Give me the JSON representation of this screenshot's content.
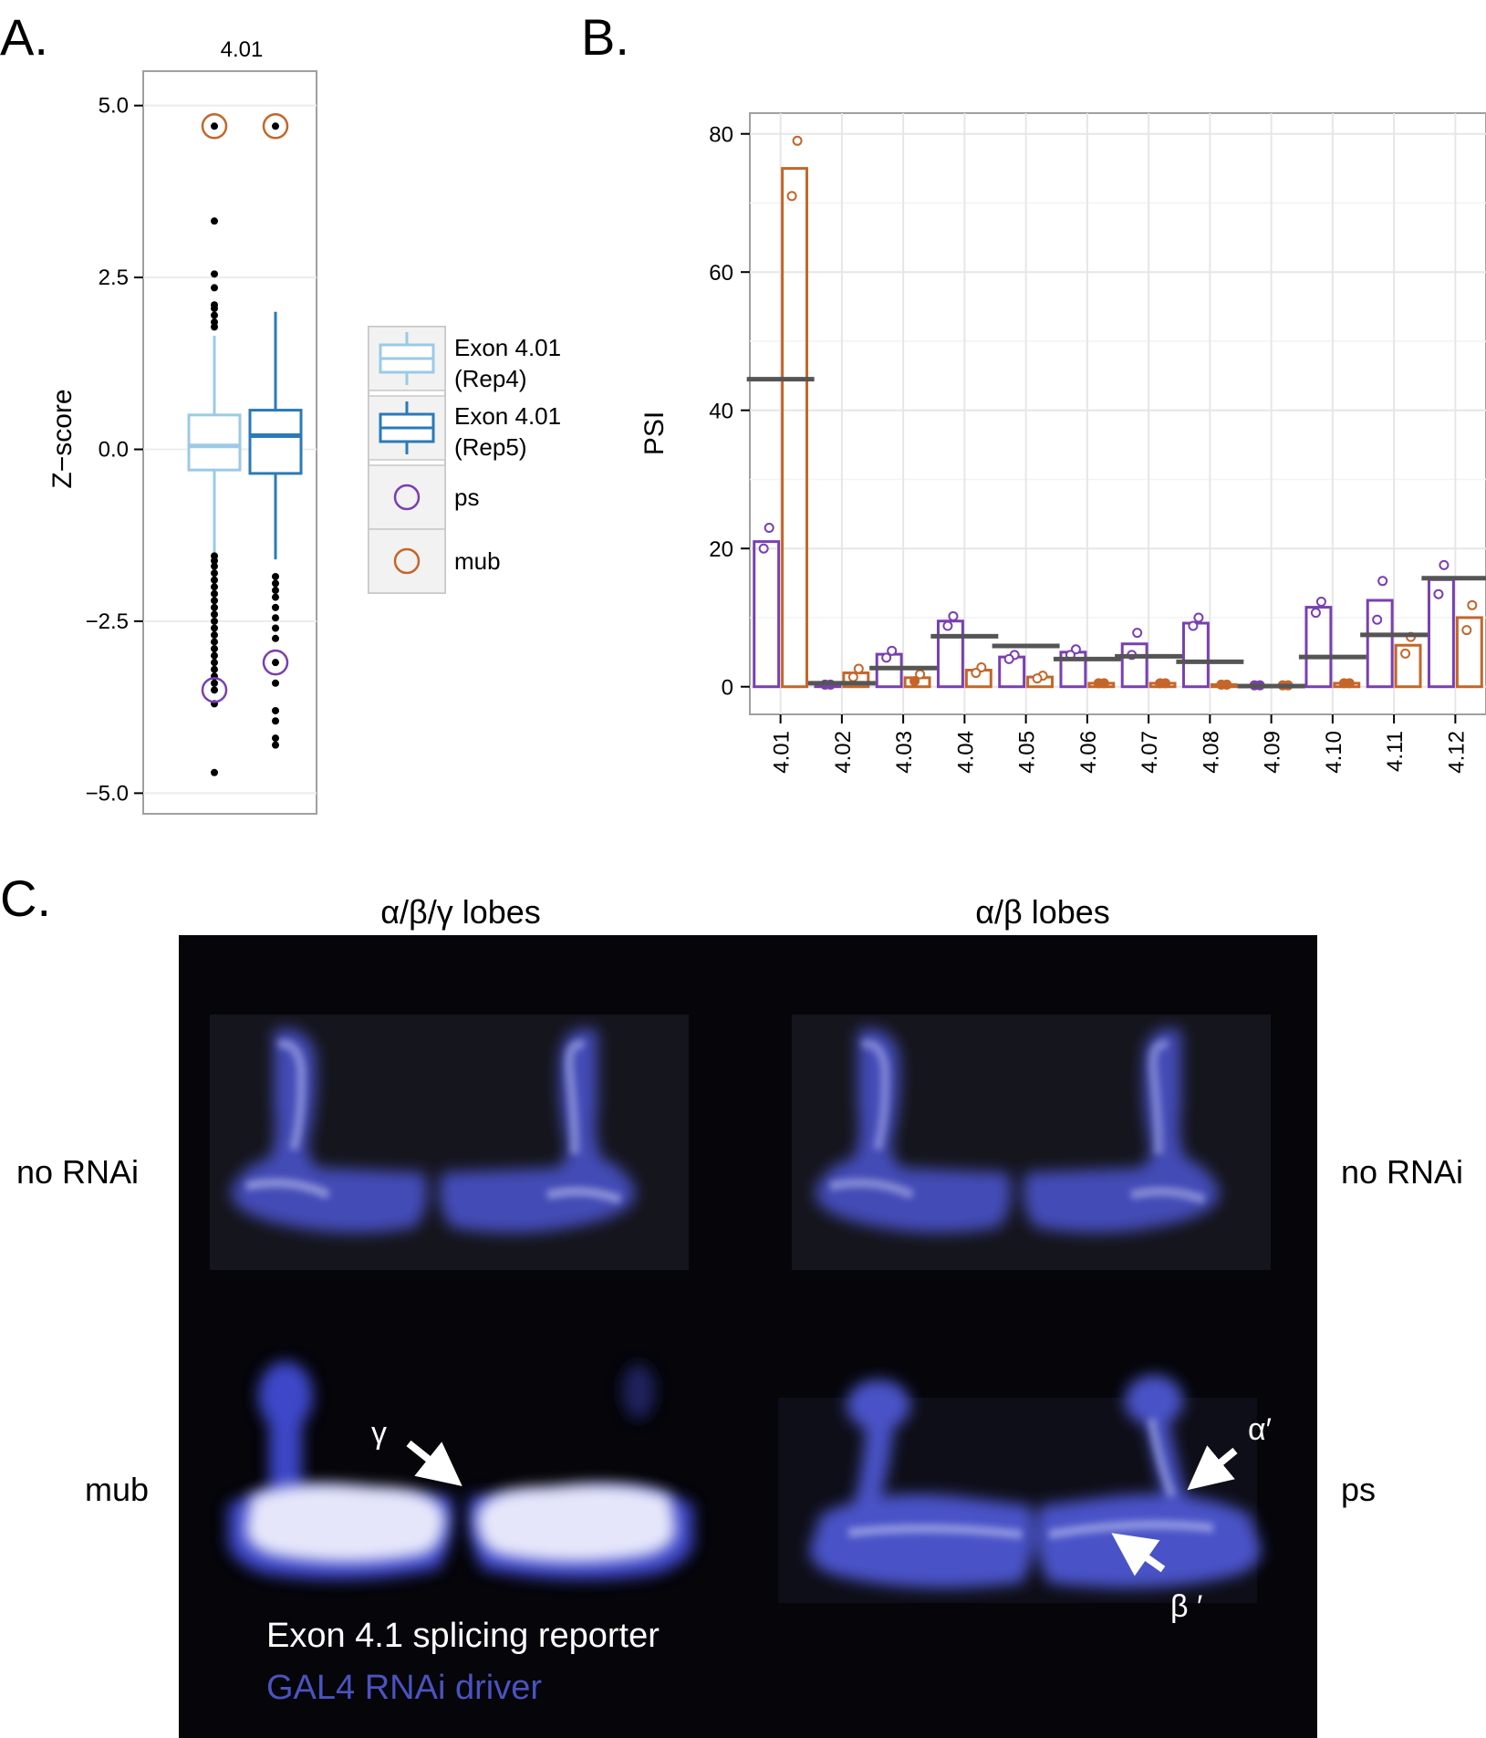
{
  "panels": {
    "a": {
      "letter": "A.",
      "strip_label": "4.01",
      "ylabel": "Z−score",
      "legend": [
        {
          "label_line1": "Exon 4.01",
          "label_line2": "(Rep4)",
          "color": "#9ccae6",
          "kind": "box"
        },
        {
          "label_line1": "Exon 4.01",
          "label_line2": "(Rep5)",
          "color": "#2a7ab8",
          "kind": "box"
        },
        {
          "label_line1": "ps",
          "label_line2": "",
          "color": "#7a3fb0",
          "kind": "circle"
        },
        {
          "label_line1": "mub",
          "label_line2": "",
          "color": "#c4662a",
          "kind": "circle"
        }
      ]
    },
    "b": {
      "letter": "B.",
      "ylabel": "PSI"
    },
    "c": {
      "letter": "C.",
      "col_left": "α/β/γ lobes",
      "col_right": "α/β lobes",
      "row_top_left": "no RNAi",
      "row_top_right": "no RNAi",
      "row_bottom_left": "mub",
      "row_bottom_right": "ps",
      "arrow_gamma": "γ",
      "arrow_alpha": "α′",
      "arrow_beta": "β ′",
      "caption_line1": "Exon 4.1 splicing reporter",
      "caption_line2": "GAL4 RNAi driver",
      "colors": {
        "background": "#05050a",
        "stain": "#3e47c8",
        "reporter": "#ffffff",
        "driver_text": "#4a53c0"
      }
    }
  },
  "chart_data": [
    {
      "type": "box",
      "title": "4.01",
      "ylabel": "Z−score",
      "ylim": [
        -5.3,
        5.5
      ],
      "yticks": [
        -5.0,
        -2.5,
        0.0,
        2.5,
        5.0
      ],
      "series": [
        {
          "name": "Exon 4.01 (Rep4)",
          "color": "#9ccae6",
          "stats": {
            "whisker_low": -1.5,
            "q1": -0.3,
            "median": 0.05,
            "q3": 0.5,
            "whisker_high": 1.65
          },
          "outliers": [
            4.7,
            3.32,
            2.55,
            2.35,
            2.1,
            2.05,
            1.95,
            1.85,
            1.78,
            -1.55,
            -1.62,
            -1.7,
            -1.8,
            -1.9,
            -2.0,
            -2.1,
            -2.2,
            -2.3,
            -2.4,
            -2.5,
            -2.6,
            -2.7,
            -2.8,
            -2.9,
            -3.0,
            -3.1,
            -3.2,
            -3.3,
            -3.4,
            -3.5,
            -3.7,
            -4.7
          ],
          "highlight": {
            "ps": -3.5,
            "mub": 4.7
          }
        },
        {
          "name": "Exon 4.01 (Rep5)",
          "color": "#2a7ab8",
          "stats": {
            "whisker_low": -1.6,
            "q1": -0.35,
            "median": 0.2,
            "q3": 0.57,
            "whisker_high": 2.0
          },
          "outliers": [
            4.7,
            -1.85,
            -1.95,
            -2.05,
            -2.15,
            -2.3,
            -2.45,
            -2.6,
            -2.75,
            -3.1,
            -3.4,
            -3.8,
            -3.95,
            -4.2,
            -4.3
          ],
          "highlight": {
            "ps": -3.1,
            "mub": 4.7
          }
        }
      ]
    },
    {
      "type": "bar",
      "ylabel": "PSI",
      "xlabel": "",
      "ylim": [
        -4,
        83
      ],
      "yticks": [
        0,
        20,
        40,
        60,
        80
      ],
      "categories": [
        "4.01",
        "4.02",
        "4.03",
        "4.04",
        "4.05",
        "4.06",
        "4.07",
        "4.08",
        "4.09",
        "4.10",
        "4.11",
        "4.12"
      ],
      "series": [
        {
          "name": "ps",
          "color": "#7a3fb0",
          "values": [
            21,
            0.3,
            4.7,
            9.5,
            4.3,
            5.0,
            6.2,
            9.2,
            0.2,
            11.5,
            12.5,
            15.5
          ],
          "replicates": [
            [
              23,
              20
            ],
            [
              0.3,
              0.3
            ],
            [
              5.2,
              4.2
            ],
            [
              10.2,
              8.8
            ],
            [
              4.6,
              4.0
            ],
            [
              5.4,
              4.6
            ],
            [
              7.8,
              4.6
            ],
            [
              10.0,
              8.8
            ],
            [
              0.2,
              0.2
            ],
            [
              12.3,
              10.7
            ],
            [
              15.3,
              9.7
            ],
            [
              17.6,
              13.4
            ]
          ]
        },
        {
          "name": "mub",
          "color": "#c4662a",
          "values": [
            75,
            2.0,
            1.3,
            2.4,
            1.4,
            0.5,
            0.5,
            0.3,
            0.2,
            0.5,
            6.0,
            10.0
          ],
          "replicates": [
            [
              79,
              71
            ],
            [
              2.6,
              1.4
            ],
            [
              1.8,
              0.8
            ],
            [
              2.8,
              2.0
            ],
            [
              1.6,
              1.2
            ],
            [
              0.5,
              0.5
            ],
            [
              0.5,
              0.5
            ],
            [
              0.3,
              0.3
            ],
            [
              0.2,
              0.2
            ],
            [
              0.5,
              0.5
            ],
            [
              7.2,
              4.8
            ],
            [
              11.8,
              8.2
            ]
          ]
        }
      ],
      "means": [
        44.5,
        0.5,
        2.7,
        7.3,
        5.9,
        4.0,
        4.4,
        3.6,
        0.1,
        4.3,
        7.5,
        15.7
      ]
    }
  ]
}
